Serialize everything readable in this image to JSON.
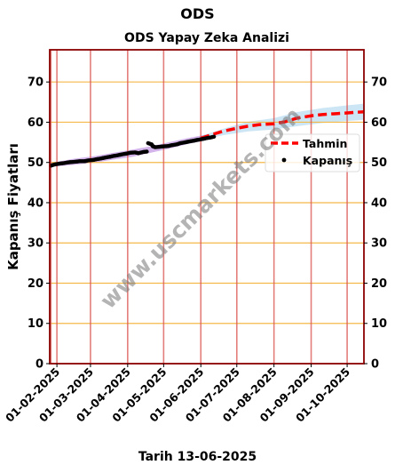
{
  "page_title": "ODS",
  "footer_text": "Tarih 13-06-2025",
  "watermark": "www.uscmarkets.com",
  "chart_data": {
    "type": "line",
    "title": "ODS Yapay Zeka Analizi",
    "xlabel": "",
    "ylabel": "Kapanış Fiyatları",
    "ylim": [
      0,
      78
    ],
    "yticks": [
      0,
      10,
      20,
      30,
      40,
      50,
      60,
      70
    ],
    "x_range": [
      "2025-01-26",
      "2025-10-15"
    ],
    "xticks": [
      "2025-02-01",
      "2025-03-01",
      "2025-04-01",
      "2025-05-01",
      "2025-06-01",
      "2025-07-01",
      "2025-08-01",
      "2025-09-01",
      "2025-10-01"
    ],
    "xtick_labels": [
      "01-02-2025",
      "01-03-2025",
      "01-04-2025",
      "01-05-2025",
      "01-06-2025",
      "01-07-2025",
      "01-08-2025",
      "01-09-2025",
      "01-10-2025"
    ],
    "grid": true,
    "legend_position": "right",
    "series": [
      {
        "name": "Kapanış",
        "kind": "scatter",
        "color": "#000000",
        "x": [
          "2025-01-27",
          "2025-01-30",
          "2025-02-03",
          "2025-02-06",
          "2025-02-10",
          "2025-02-13",
          "2025-02-17",
          "2025-02-20",
          "2025-02-24",
          "2025-02-27",
          "2025-03-03",
          "2025-03-06",
          "2025-03-10",
          "2025-03-13",
          "2025-03-17",
          "2025-03-20",
          "2025-03-24",
          "2025-03-27",
          "2025-03-31",
          "2025-04-03",
          "2025-04-07",
          "2025-04-10",
          "2025-04-14",
          "2025-04-17",
          "2025-04-18",
          "2025-04-21",
          "2025-04-22",
          "2025-04-24",
          "2025-04-28",
          "2025-05-01",
          "2025-05-05",
          "2025-05-08",
          "2025-05-12",
          "2025-05-15",
          "2025-05-19",
          "2025-05-22",
          "2025-05-26",
          "2025-05-29",
          "2025-06-02",
          "2025-06-05",
          "2025-06-09",
          "2025-06-12"
        ],
        "y": [
          49.2,
          49.5,
          49.7,
          49.8,
          50.0,
          50.1,
          50.2,
          50.3,
          50.3,
          50.5,
          50.6,
          50.8,
          51.0,
          51.2,
          51.4,
          51.6,
          51.8,
          52.0,
          52.2,
          52.4,
          52.5,
          52.3,
          52.6,
          52.7,
          54.8,
          54.5,
          54.0,
          53.8,
          53.9,
          54.0,
          54.1,
          54.3,
          54.5,
          54.8,
          55.0,
          55.2,
          55.4,
          55.6,
          55.8,
          56.0,
          56.2,
          56.4
        ]
      },
      {
        "name": "Tahmin",
        "kind": "line",
        "color": "#ff0000",
        "x": [
          "2025-06-01",
          "2025-06-10",
          "2025-06-20",
          "2025-07-01",
          "2025-07-10",
          "2025-07-20",
          "2025-08-01",
          "2025-08-10",
          "2025-08-20",
          "2025-09-01",
          "2025-09-10",
          "2025-09-20",
          "2025-10-01",
          "2025-10-15"
        ],
        "y": [
          56.0,
          56.9,
          57.8,
          58.5,
          59.0,
          59.4,
          59.6,
          60.1,
          61.0,
          61.6,
          61.9,
          62.1,
          62.3,
          62.6
        ]
      }
    ],
    "bands": [
      {
        "name": "train-band",
        "color": "#9b59d0",
        "x": [
          "2025-01-27",
          "2025-02-15",
          "2025-03-05",
          "2025-03-20",
          "2025-04-05",
          "2025-04-20",
          "2025-05-05",
          "2025-05-20",
          "2025-06-05"
        ],
        "lower": [
          48.9,
          49.4,
          50.0,
          50.7,
          51.4,
          52.4,
          53.4,
          54.5,
          55.5
        ],
        "upper": [
          49.9,
          50.9,
          51.6,
          52.4,
          53.2,
          54.0,
          55.0,
          56.0,
          56.9
        ]
      },
      {
        "name": "forecast-band",
        "color": "#8ec8e8",
        "x": [
          "2025-06-01",
          "2025-06-20",
          "2025-07-10",
          "2025-08-01",
          "2025-08-20",
          "2025-09-10",
          "2025-10-01",
          "2025-10-15"
        ],
        "lower": [
          55.6,
          56.8,
          57.7,
          58.2,
          59.0,
          59.8,
          60.3,
          60.6
        ],
        "upper": [
          56.6,
          58.4,
          60.1,
          61.0,
          62.5,
          63.5,
          64.2,
          64.6
        ]
      }
    ],
    "vertical_lines": [
      "2025-01-27",
      "2025-02-01",
      "2025-03-01",
      "2025-04-01",
      "2025-05-01",
      "2025-06-01",
      "2025-07-01",
      "2025-08-01",
      "2025-09-01",
      "2025-10-01"
    ]
  }
}
